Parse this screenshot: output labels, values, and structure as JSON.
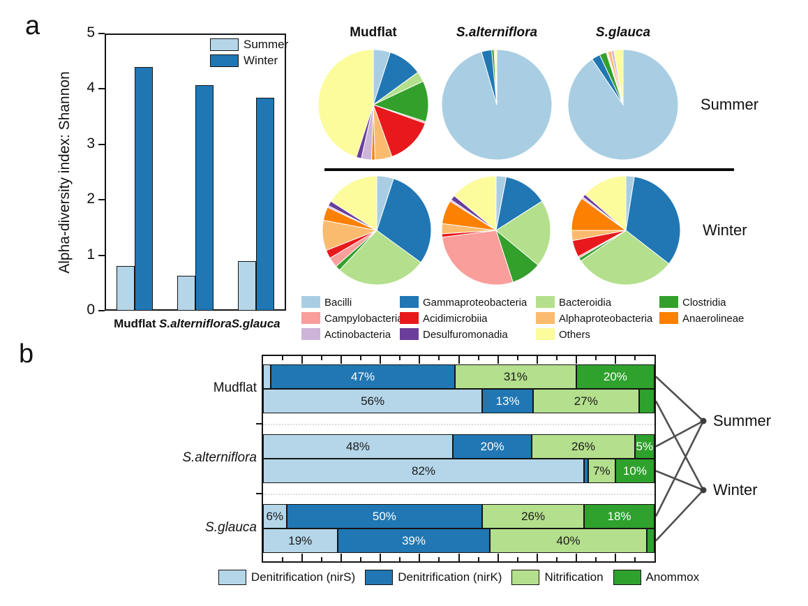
{
  "figure": {
    "panel_a_label": "a",
    "panel_b_label": "b"
  },
  "chart_data": [
    {
      "id": "shannon_diversity_bars",
      "type": "bar",
      "title": "",
      "xlabel": "",
      "ylabel": "Alpha-diversity index: Shannon",
      "categories": [
        "Mudflat",
        "S.alterniflora",
        "S.glauca"
      ],
      "italic_categories": [
        false,
        true,
        true
      ],
      "series": [
        {
          "name": "Summer",
          "color": "#B5D6E9",
          "values": [
            0.8,
            0.63,
            0.89
          ]
        },
        {
          "name": "Winter",
          "color": "#2077B4",
          "values": [
            4.4,
            4.07,
            3.84
          ]
        }
      ],
      "ylim": [
        0,
        5
      ],
      "yticks": [
        0,
        1,
        2,
        3,
        4,
        5
      ],
      "grid": false,
      "legend_position": "top-right"
    },
    {
      "id": "bacterial_class_pies",
      "type": "pie",
      "columns": [
        "Mudflat",
        "S.alterniflora",
        "S.glauca"
      ],
      "italic_columns": [
        false,
        true,
        true
      ],
      "rows": [
        "Summer",
        "Winter"
      ],
      "legend": [
        {
          "name": "Bacilli",
          "color": "#A9CEE3"
        },
        {
          "name": "Gammaproteobacteria",
          "color": "#2077B4"
        },
        {
          "name": "Bacteroidia",
          "color": "#B4DF8C"
        },
        {
          "name": "Clostridia",
          "color": "#33A02C"
        },
        {
          "name": "Campylobacteria",
          "color": "#F99E9B"
        },
        {
          "name": "Acidimicrobiia",
          "color": "#E7191C"
        },
        {
          "name": "Alphaproteobacteria",
          "color": "#FBBB6E"
        },
        {
          "name": "Anaerolineae",
          "color": "#FC8002"
        },
        {
          "name": "Actinobacteria",
          "color": "#CDB4D8"
        },
        {
          "name": "Desulfuromonadia",
          "color": "#6A3E9A"
        },
        {
          "name": "Others",
          "color": "#FCFC9C"
        }
      ],
      "values_percent": {
        "Summer": {
          "Mudflat": [
            5,
            10,
            3,
            12,
            0.5,
            14,
            5,
            1,
            3,
            1.5,
            45
          ],
          "S.alterniflora": [
            95.5,
            3,
            0,
            0.7,
            0,
            0,
            0.3,
            0,
            0,
            0,
            0.5
          ],
          "S.glauca": [
            90.5,
            2.5,
            0,
            2,
            0.3,
            0.2,
            1,
            0,
            0.8,
            0,
            2.7
          ]
        },
        "Winter": {
          "Mudflat": [
            5,
            30,
            27,
            1.5,
            3,
            2.5,
            9,
            4,
            0.5,
            1.5,
            16
          ],
          "S.alterniflora": [
            3,
            13,
            20,
            9,
            28,
            1,
            3,
            7,
            0.5,
            1.5,
            14
          ],
          "S.glauca": [
            2.5,
            33,
            30,
            1,
            0.5,
            5,
            3,
            10,
            0.5,
            1,
            13.5
          ]
        }
      }
    },
    {
      "id": "nitrogen_process_stacked_bars",
      "type": "bar",
      "orientation": "horizontal-stacked",
      "categories": [
        "Mudflat",
        "S.alterniflora",
        "S.glauca"
      ],
      "italic_categories": [
        false,
        true,
        true
      ],
      "rows": [
        "Summer",
        "Winter"
      ],
      "right_labels": [
        "Summer",
        "Winter"
      ],
      "xlim_percent": [
        0,
        100
      ],
      "processes": [
        {
          "name": "Denitrification (nirS)",
          "color": "#B5D6E9",
          "text_color": "#1a1a1a"
        },
        {
          "name": "Denitrification (nirK)",
          "color": "#2077B4",
          "text_color": "#ffffff"
        },
        {
          "name": "Nitrification",
          "color": "#B4DF8C",
          "text_color": "#1a1a1a"
        },
        {
          "name": "Anommox",
          "color": "#2FA12D",
          "text_color": "#ffffff"
        }
      ],
      "values_percent": {
        "Mudflat": {
          "Summer": [
            2,
            47,
            31,
            20
          ],
          "Winter": [
            56,
            13,
            27,
            4
          ]
        },
        "S.alterniflora": {
          "Summer": [
            48,
            20,
            26,
            5
          ],
          "Winter": [
            82,
            1,
            7,
            10
          ]
        },
        "S.glauca": {
          "Summer": [
            6,
            50,
            26,
            18
          ],
          "Winter": [
            19,
            39,
            40,
            2
          ]
        }
      },
      "segment_labels": {
        "Mudflat": {
          "Summer": [
            "",
            "47%",
            "31%",
            "20%"
          ],
          "Winter": [
            "56%",
            "13%",
            "27%",
            ""
          ]
        },
        "S.alterniflora": {
          "Summer": [
            "48%",
            "20%",
            "26%",
            "5%"
          ],
          "Winter": [
            "82%",
            "",
            "7%",
            "10%"
          ]
        },
        "S.glauca": {
          "Summer": [
            "6%",
            "50%",
            "26%",
            "18%"
          ],
          "Winter": [
            "19%",
            "39%",
            "40%",
            ""
          ]
        }
      }
    }
  ]
}
